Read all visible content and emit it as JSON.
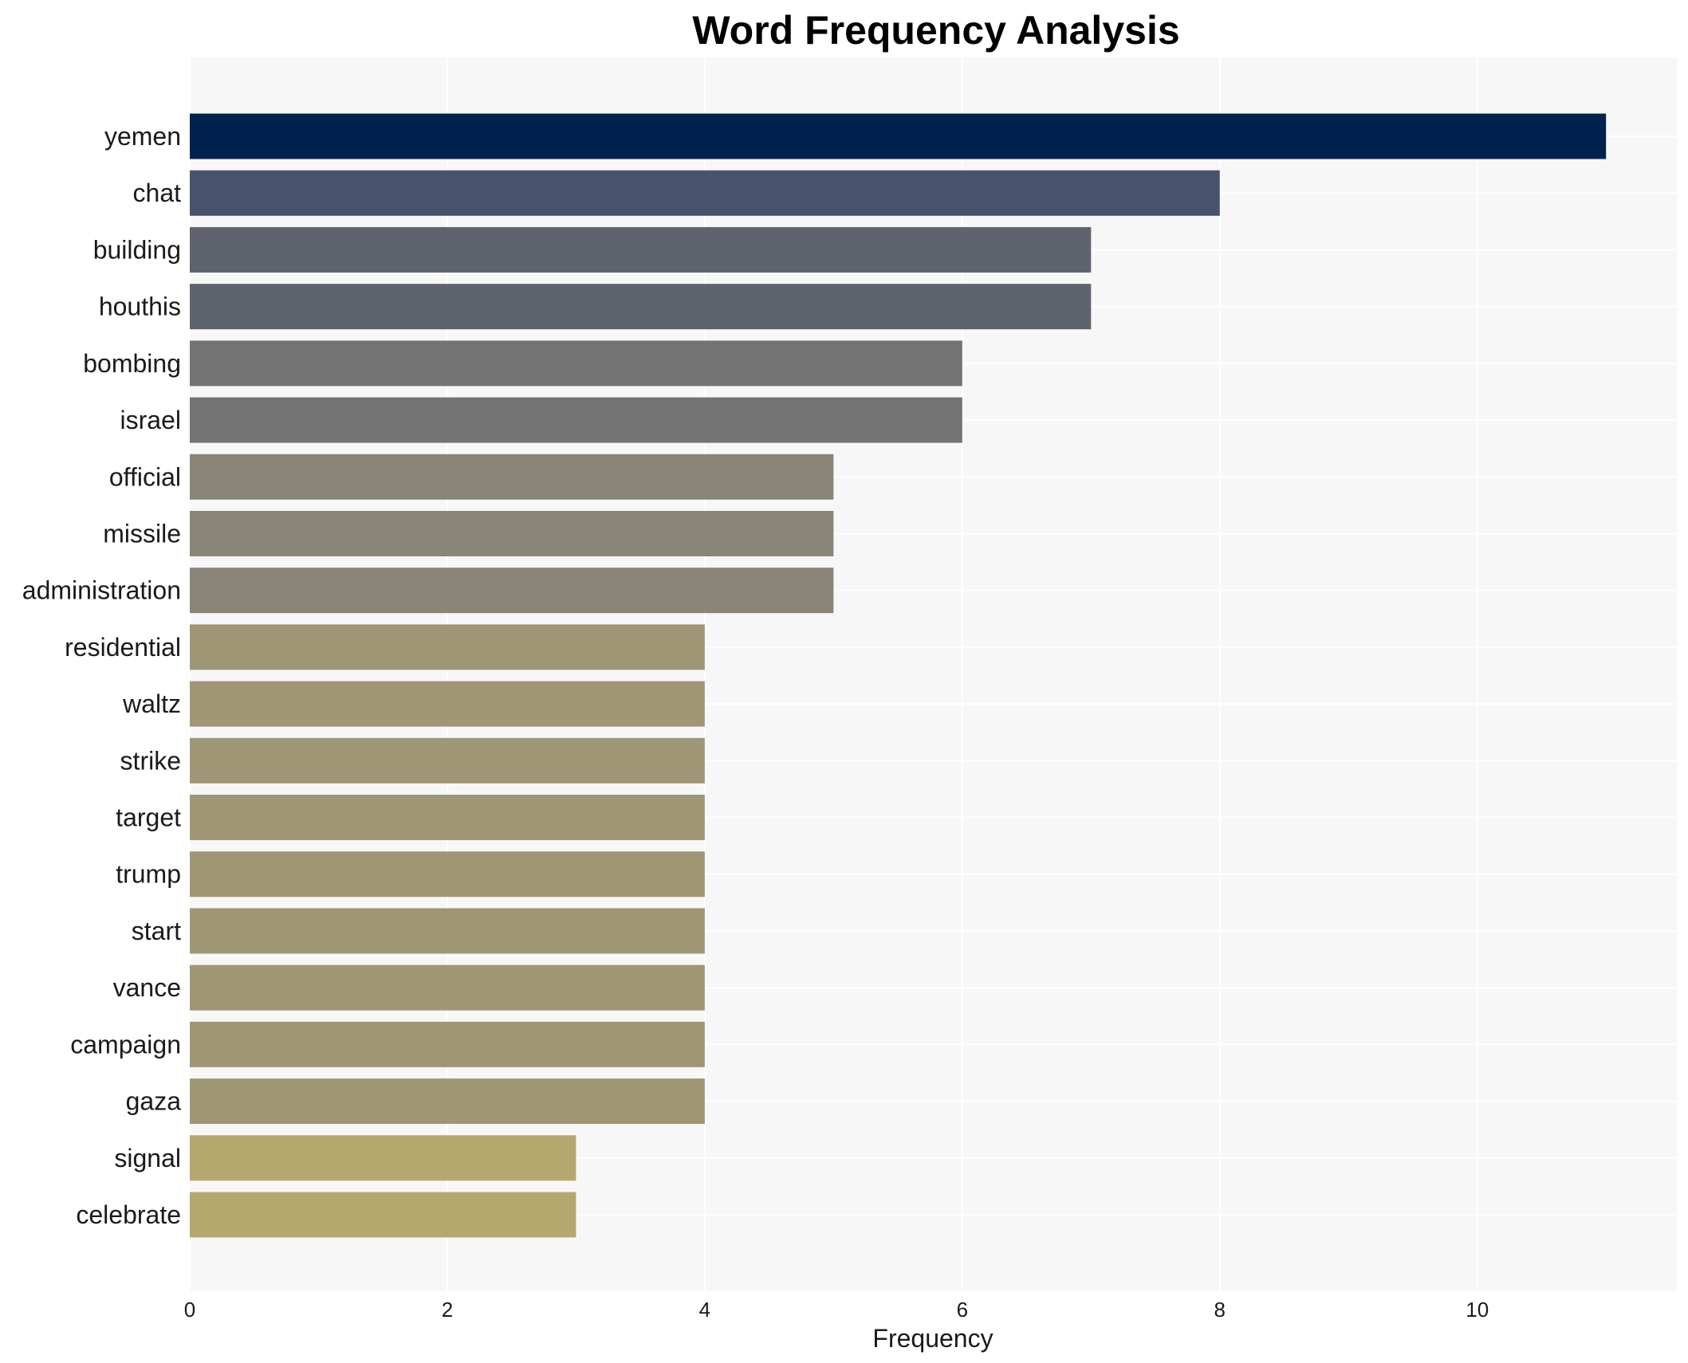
{
  "chart_data": {
    "type": "bar",
    "orientation": "horizontal",
    "title": "Word Frequency Analysis",
    "xlabel": "Frequency",
    "ylabel": "",
    "xlim": [
      0,
      11.55
    ],
    "xticks": [
      0,
      2,
      4,
      6,
      8,
      10
    ],
    "grid": true,
    "categories": [
      "yemen",
      "chat",
      "building",
      "houthis",
      "bombing",
      "israel",
      "official",
      "missile",
      "administration",
      "residential",
      "waltz",
      "strike",
      "target",
      "trump",
      "start",
      "vance",
      "campaign",
      "gaza",
      "signal",
      "celebrate"
    ],
    "values": [
      11,
      8,
      7,
      7,
      6,
      6,
      5,
      5,
      5,
      4,
      4,
      4,
      4,
      4,
      4,
      4,
      4,
      4,
      3,
      3
    ],
    "colors": [
      "#00224e",
      "#47526c",
      "#5f636e",
      "#5f636e",
      "#737373",
      "#737373",
      "#898677",
      "#898677",
      "#898677",
      "#9f9676",
      "#9f9676",
      "#9f9676",
      "#9f9676",
      "#9f9676",
      "#9f9676",
      "#9f9676",
      "#9f9676",
      "#9f9676",
      "#b4a86f",
      "#b4a86f"
    ],
    "background": "#f7f7f7"
  }
}
